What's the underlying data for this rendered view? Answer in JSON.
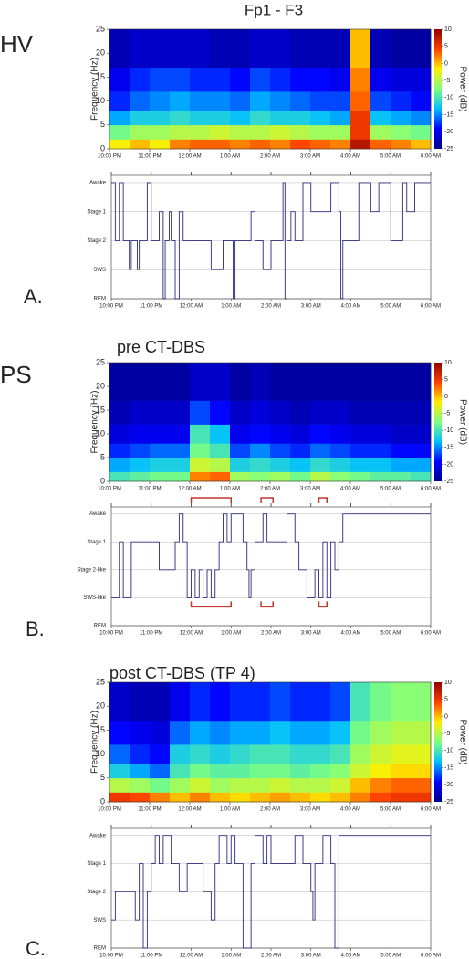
{
  "chart_data": [
    {
      "type": "heatmap",
      "title": "Fp1 - F3",
      "group_label": "HV",
      "ylabel": "Frequency (Hz)",
      "colorbar_label": "Power (dB)",
      "x_edges": [
        0,
        0.5,
        1,
        1.5,
        2,
        2.5,
        3,
        3.5,
        4,
        4.5,
        5,
        5.5,
        6,
        6.5,
        7,
        7.5,
        8
      ],
      "y_edges": [
        0,
        2,
        5,
        8,
        12,
        17,
        25
      ],
      "z": [
        [
          -2,
          0,
          -2,
          2,
          3,
          3,
          2,
          3,
          2,
          4,
          3,
          2,
          8,
          3,
          2,
          0
        ],
        [
          -8,
          -6,
          -6,
          -5,
          -5,
          -4,
          -5,
          -5,
          -4,
          -5,
          -6,
          -6,
          5,
          -6,
          -7,
          -8
        ],
        [
          -14,
          -12,
          -12,
          -11,
          -12,
          -12,
          -13,
          -11,
          -12,
          -12,
          -13,
          -14,
          5,
          -13,
          -14,
          -15
        ],
        [
          -18,
          -16,
          -15,
          -14,
          -15,
          -15,
          -16,
          -14,
          -15,
          -16,
          -17,
          -17,
          3,
          -17,
          -18,
          -19
        ],
        [
          -20,
          -18,
          -17,
          -17,
          -18,
          -18,
          -19,
          -17,
          -18,
          -19,
          -19,
          -20,
          2,
          -20,
          -21,
          -21
        ],
        [
          -23,
          -22,
          -22,
          -22,
          -22,
          -23,
          -23,
          -22,
          -22,
          -23,
          -23,
          -23,
          0,
          -23,
          -24,
          -24
        ]
      ],
      "zlim": [
        -25,
        10
      ],
      "zticks": [
        10,
        5,
        0,
        -5,
        -10,
        -15,
        -20,
        -25
      ],
      "colorscale": [
        "#00008f",
        "#0000ff",
        "#00bfff",
        "#7fff7f",
        "#ffef00",
        "#ff4000",
        "#8f0000"
      ],
      "xlim": [
        0,
        8
      ],
      "ylim": [
        0,
        25
      ],
      "yticks": [
        0,
        5,
        10,
        15,
        20,
        25
      ],
      "xticks": [
        {
          "value": 0,
          "label": "10:00 PM"
        },
        {
          "value": 1,
          "label": "11:00 PM"
        },
        {
          "value": 2,
          "label": "12:00 AM"
        },
        {
          "value": 3,
          "label": "1:00 AM"
        },
        {
          "value": 4,
          "label": "2:00 AM"
        },
        {
          "value": 5,
          "label": "3:00 AM"
        },
        {
          "value": 6,
          "label": "4:00 AM"
        },
        {
          "value": 7,
          "label": "5:00 AM"
        },
        {
          "value": 8,
          "label": "6:00 AM"
        }
      ]
    },
    {
      "type": "line",
      "step": true,
      "panel_label": "A.",
      "color": "#2b2b7a",
      "grid": true,
      "x": [
        0,
        0.1,
        0.2,
        0.3,
        0.45,
        0.5,
        0.65,
        0.7,
        0.9,
        1.0,
        1.2,
        1.3,
        1.35,
        1.45,
        1.5,
        1.6,
        1.7,
        1.8,
        2.0,
        2.5,
        2.8,
        3.0,
        3.05,
        3.1,
        3.3,
        3.5,
        3.6,
        3.8,
        4.0,
        4.3,
        4.35,
        4.4,
        4.5,
        4.6,
        4.8,
        5.0,
        5.2,
        5.5,
        5.7,
        5.75,
        5.8,
        6.2,
        6.5,
        6.7,
        7.0,
        7.3,
        7.4,
        7.6,
        7.8,
        8.0
      ],
      "values": [
        4,
        2,
        4,
        2,
        1,
        2,
        1,
        2,
        4,
        2,
        3,
        0,
        2,
        3,
        2,
        0,
        3,
        2,
        2,
        1,
        2,
        2,
        0,
        2,
        2,
        3,
        2,
        1,
        2,
        4,
        0,
        2,
        3,
        2,
        4,
        3,
        3,
        4,
        3,
        0,
        2,
        4,
        3,
        4,
        2,
        4,
        3,
        4,
        4,
        4
      ],
      "xlim": [
        0,
        8
      ],
      "ylim": [
        0,
        4.25
      ],
      "yticks": [
        {
          "value": 4,
          "label": "Awake"
        },
        {
          "value": 3,
          "label": "Stage 1"
        },
        {
          "value": 2,
          "label": "Stage 2"
        },
        {
          "value": 1,
          "label": "SWS"
        },
        {
          "value": 0,
          "label": "REM"
        }
      ],
      "xticks": [
        {
          "value": 0,
          "label": "10:00 PM"
        },
        {
          "value": 1,
          "label": "11:00 PM"
        },
        {
          "value": 2,
          "label": "12:00 AM"
        },
        {
          "value": 3,
          "label": "1:00 AM"
        },
        {
          "value": 4,
          "label": "2:00 AM"
        },
        {
          "value": 5,
          "label": "3:00 AM"
        },
        {
          "value": 6,
          "label": "4:00 AM"
        },
        {
          "value": 7,
          "label": "5:00 AM"
        },
        {
          "value": 8,
          "label": "6:00 AM"
        }
      ]
    },
    {
      "type": "heatmap",
      "title": "pre CT-DBS",
      "group_label": "PS",
      "ylabel": "Frequency (Hz)",
      "colorbar_label": "Power (dB)",
      "x_edges": [
        0,
        0.5,
        1,
        1.5,
        2,
        2.5,
        3,
        3.5,
        4,
        4.5,
        5,
        5.5,
        6,
        6.5,
        7,
        7.5,
        8
      ],
      "y_edges": [
        0,
        2,
        5,
        8,
        12,
        17,
        25
      ],
      "z": [
        [
          -10,
          -9,
          -8,
          -8,
          2,
          3,
          -6,
          -7,
          -6,
          -8,
          -5,
          -7,
          -8,
          -9,
          -9,
          -10
        ],
        [
          -14,
          -13,
          -12,
          -12,
          -4,
          -5,
          -12,
          -11,
          -12,
          -13,
          -11,
          -12,
          -13,
          -13,
          -14,
          -14
        ],
        [
          -18,
          -17,
          -16,
          -16,
          -8,
          -10,
          -17,
          -15,
          -17,
          -18,
          -16,
          -17,
          -18,
          -18,
          -19,
          -19
        ],
        [
          -21,
          -20,
          -20,
          -20,
          -10,
          -13,
          -20,
          -19,
          -20,
          -21,
          -19,
          -20,
          -21,
          -21,
          -22,
          -22
        ],
        [
          -23,
          -22,
          -22,
          -22,
          -17,
          -19,
          -22,
          -21,
          -22,
          -23,
          -22,
          -22,
          -23,
          -23,
          -23,
          -23
        ],
        [
          -24,
          -24,
          -24,
          -24,
          -22,
          -22,
          -24,
          -23,
          -24,
          -24,
          -24,
          -24,
          -24,
          -24,
          -24,
          -24
        ]
      ],
      "zlim": [
        -25,
        10
      ],
      "zticks": [
        10,
        5,
        0,
        -5,
        -10,
        -15,
        -20,
        -25
      ],
      "colorscale": [
        "#00008f",
        "#0000ff",
        "#00bfff",
        "#7fff7f",
        "#ffef00",
        "#ff4000",
        "#8f0000"
      ],
      "xlim": [
        0,
        8
      ],
      "ylim": [
        0,
        25
      ],
      "yticks": [
        0,
        5,
        10,
        15,
        20,
        25
      ],
      "xticks": [
        {
          "value": 0,
          "label": "10:00 PM"
        },
        {
          "value": 1,
          "label": "11:00 PM"
        },
        {
          "value": 2,
          "label": "12:00 AM"
        },
        {
          "value": 3,
          "label": "1:00 AM"
        },
        {
          "value": 4,
          "label": "2:00 AM"
        },
        {
          "value": 5,
          "label": "3:00 AM"
        },
        {
          "value": 6,
          "label": "4:00 AM"
        },
        {
          "value": 7,
          "label": "5:00 AM"
        },
        {
          "value": 8,
          "label": "6:00 AM"
        }
      ]
    },
    {
      "type": "line",
      "step": true,
      "panel_label": "B.",
      "color": "#2b2b7a",
      "grid": true,
      "highlight_color": "#c0392b",
      "highlights": [
        [
          2,
          3
        ],
        [
          3.75,
          4.05
        ],
        [
          5.2,
          5.4
        ]
      ],
      "x": [
        0,
        0.2,
        0.3,
        0.5,
        0.8,
        1.2,
        1.6,
        1.7,
        1.8,
        1.9,
        2.0,
        2.1,
        2.2,
        2.3,
        2.4,
        2.5,
        2.6,
        2.7,
        2.8,
        2.9,
        3.0,
        3.3,
        3.4,
        3.45,
        3.5,
        3.6,
        3.8,
        3.9,
        4.0,
        4.4,
        4.6,
        4.7,
        4.9,
        5.1,
        5.2,
        5.3,
        5.4,
        5.5,
        5.6,
        5.7,
        5.8,
        6.0,
        8.0
      ],
      "values": [
        1,
        3,
        1,
        3,
        3,
        2,
        3,
        4,
        3,
        1,
        2,
        1,
        2,
        1,
        2,
        1,
        2,
        3,
        4,
        3,
        4,
        3,
        2,
        1,
        2,
        3,
        4,
        3,
        3,
        4,
        3,
        2,
        1,
        2,
        1,
        3,
        1,
        3,
        2,
        3,
        4,
        4,
        4
      ],
      "xlim": [
        0,
        8
      ],
      "ylim": [
        0,
        4.25
      ],
      "yticks": [
        {
          "value": 4,
          "label": "Awake"
        },
        {
          "value": 3,
          "label": "Stage 1"
        },
        {
          "value": 2,
          "label": "Stage 2-like"
        },
        {
          "value": 1,
          "label": "SWS-like"
        },
        {
          "value": 0,
          "label": "REM"
        }
      ],
      "xticks": [
        {
          "value": 0,
          "label": "10:00 PM"
        },
        {
          "value": 1,
          "label": "11:00 PM"
        },
        {
          "value": 2,
          "label": "12:00 AM"
        },
        {
          "value": 3,
          "label": "1:00 AM"
        },
        {
          "value": 4,
          "label": "2:00 AM"
        },
        {
          "value": 5,
          "label": "3:00 AM"
        },
        {
          "value": 6,
          "label": "4:00 AM"
        },
        {
          "value": 7,
          "label": "5:00 AM"
        },
        {
          "value": 8,
          "label": "6:00 AM"
        }
      ]
    },
    {
      "type": "heatmap",
      "title": "post CT-DBS (TP 4)",
      "ylabel": "Frequency (Hz)",
      "colorbar_label": "Power (dB)",
      "x_edges": [
        0,
        0.5,
        1,
        1.5,
        2,
        2.5,
        3,
        3.5,
        4,
        4.5,
        5,
        5.5,
        6,
        6.5,
        7,
        7.5,
        8
      ],
      "y_edges": [
        0,
        2,
        5,
        8,
        12,
        17,
        25
      ],
      "z": [
        [
          5,
          4,
          2,
          0,
          2,
          0,
          -1,
          0,
          1,
          0,
          -1,
          0,
          2,
          4,
          5,
          5
        ],
        [
          -5,
          -6,
          -8,
          -6,
          -4,
          -6,
          -5,
          -5,
          -4,
          -5,
          -5,
          -4,
          0,
          2,
          3,
          3
        ],
        [
          -12,
          -14,
          -16,
          -10,
          -8,
          -9,
          -9,
          -8,
          -8,
          -9,
          -8,
          -7,
          -4,
          -2,
          -1,
          -1
        ],
        [
          -16,
          -18,
          -19,
          -12,
          -11,
          -12,
          -11,
          -10,
          -10,
          -11,
          -11,
          -10,
          -6,
          -4,
          -3,
          -3
        ],
        [
          -19,
          -20,
          -21,
          -16,
          -14,
          -15,
          -14,
          -14,
          -13,
          -14,
          -14,
          -13,
          -8,
          -6,
          -5,
          -5
        ],
        [
          -22,
          -23,
          -23,
          -20,
          -18,
          -19,
          -18,
          -18,
          -17,
          -18,
          -18,
          -17,
          -10,
          -8,
          -7,
          -7
        ]
      ],
      "zlim": [
        -25,
        10
      ],
      "zticks": [
        10,
        5,
        0,
        -5,
        -10,
        -15,
        -20,
        -25
      ],
      "colorscale": [
        "#00008f",
        "#0000ff",
        "#00bfff",
        "#7fff7f",
        "#ffef00",
        "#ff4000",
        "#8f0000"
      ],
      "xlim": [
        0,
        8
      ],
      "ylim": [
        0,
        25
      ],
      "yticks": [
        0,
        5,
        10,
        15,
        20,
        25
      ],
      "xticks": [
        {
          "value": 0,
          "label": "10:00 PM"
        },
        {
          "value": 1,
          "label": "11:00 PM"
        },
        {
          "value": 2,
          "label": "12:00 AM"
        },
        {
          "value": 3,
          "label": "1:00 AM"
        },
        {
          "value": 4,
          "label": "2:00 AM"
        },
        {
          "value": 5,
          "label": "3:00 AM"
        },
        {
          "value": 6,
          "label": "4:00 AM"
        },
        {
          "value": 7,
          "label": "5:00 AM"
        },
        {
          "value": 8,
          "label": "6:00 AM"
        }
      ]
    },
    {
      "type": "line",
      "step": true,
      "panel_label": "C.",
      "color": "#2b2b7a",
      "grid": true,
      "x": [
        0,
        0.1,
        0.6,
        0.7,
        0.8,
        0.9,
        1.0,
        1.1,
        1.2,
        1.3,
        1.5,
        1.7,
        1.9,
        2.0,
        2.3,
        2.5,
        2.6,
        2.7,
        2.9,
        3.0,
        3.1,
        3.3,
        3.5,
        3.6,
        3.8,
        3.9,
        4.0,
        4.3,
        4.6,
        4.8,
        5.0,
        5.05,
        5.1,
        5.3,
        5.5,
        5.6,
        5.7,
        6.0,
        8.0
      ],
      "values": [
        1,
        2,
        1,
        3,
        0,
        2,
        3,
        4,
        3,
        4,
        3,
        2,
        3,
        3,
        2,
        1,
        3,
        4,
        3,
        4,
        3,
        0,
        3,
        4,
        3,
        4,
        3,
        3,
        4,
        3,
        2,
        1,
        3,
        4,
        3,
        0,
        4,
        4,
        4
      ],
      "xlim": [
        0,
        8
      ],
      "ylim": [
        0,
        4.25
      ],
      "yticks": [
        {
          "value": 4,
          "label": "Awake"
        },
        {
          "value": 3,
          "label": "Stage 1"
        },
        {
          "value": 2,
          "label": "Stage 2"
        },
        {
          "value": 1,
          "label": "SWS"
        },
        {
          "value": 0,
          "label": "REM"
        }
      ],
      "xticks": [
        {
          "value": 0,
          "label": "10:00 PM"
        },
        {
          "value": 1,
          "label": "11:00 PM"
        },
        {
          "value": 2,
          "label": "12:00 AM"
        },
        {
          "value": 3,
          "label": "1:00 AM"
        },
        {
          "value": 4,
          "label": "2:00 AM"
        },
        {
          "value": 5,
          "label": "3:00 AM"
        },
        {
          "value": 6,
          "label": "4:00 AM"
        },
        {
          "value": 7,
          "label": "5:00 AM"
        },
        {
          "value": 8,
          "label": "6:00 AM"
        }
      ]
    }
  ]
}
